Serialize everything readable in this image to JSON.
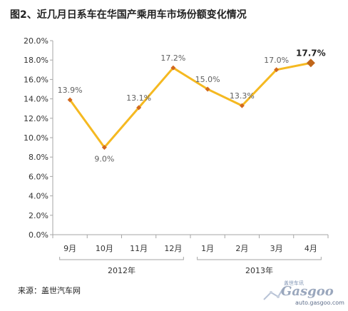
{
  "title": "图2、近几月日系车在华国产乘用车市场份额变化情况",
  "source": "来源：盖世汽车网",
  "watermark": {
    "top_text": "盖世车讯",
    "logo_text": "Gasgoo",
    "url": "auto.gasgoo.com"
  },
  "colors": {
    "line": "#f5b921",
    "marker": "#d2691e",
    "last_marker": "#c0661a",
    "axis": "#a6a6a6",
    "label": "#606060"
  },
  "chart_data": {
    "type": "line",
    "title": "图2、近几月日系车在华国产乘用车市场份额变化情况",
    "categories": [
      "9月",
      "10月",
      "11月",
      "12月",
      "1月",
      "2月",
      "3月",
      "4月"
    ],
    "groups": [
      {
        "label": "2012年",
        "categories": [
          "9月",
          "10月",
          "11月",
          "12月"
        ]
      },
      {
        "label": "2013年",
        "categories": [
          "1月",
          "2月",
          "3月",
          "4月"
        ]
      }
    ],
    "values": [
      13.9,
      9.0,
      13.1,
      17.2,
      15.0,
      13.3,
      17.0,
      17.7
    ],
    "data_labels": [
      "13.9%",
      "9.0%",
      "13.1%",
      "17.2%",
      "15.0%",
      "13.3%",
      "17.0%",
      "17.7%"
    ],
    "y_ticks": [
      "0.0%",
      "2.0%",
      "4.0%",
      "6.0%",
      "8.0%",
      "10.0%",
      "12.0%",
      "14.0%",
      "16.0%",
      "18.0%",
      "20.0%"
    ],
    "ylim": [
      0,
      20
    ],
    "grid": false,
    "legend": "none",
    "highlight_last": true
  }
}
